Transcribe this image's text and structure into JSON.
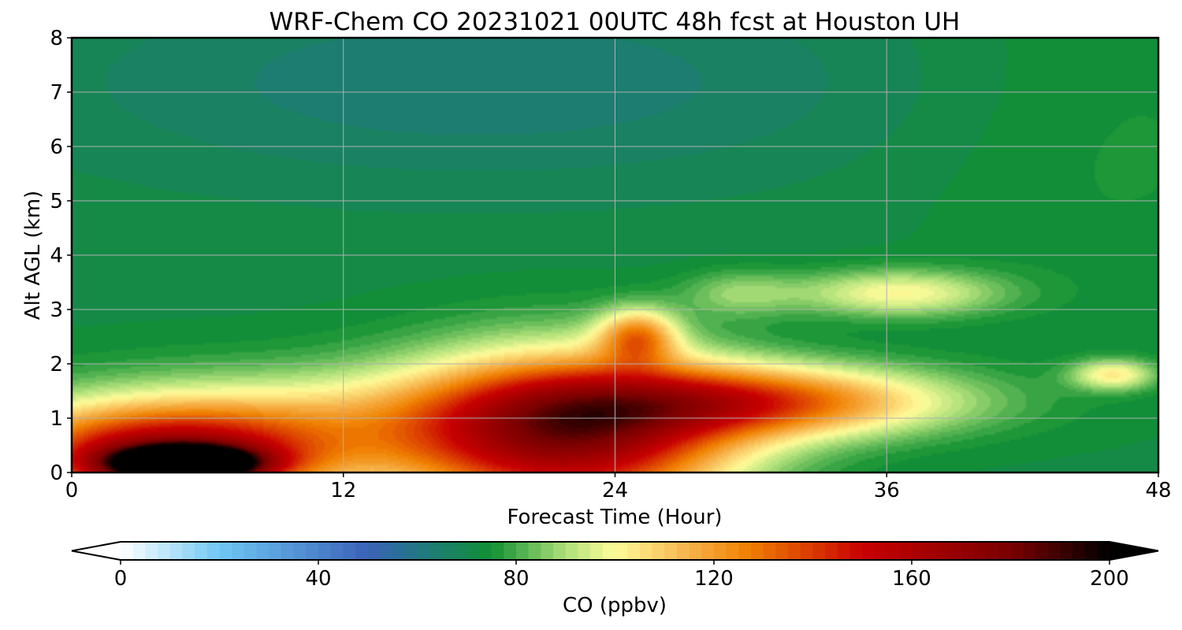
{
  "chart_data": {
    "type": "heatmap",
    "title": "WRF-Chem CO  20231021 00UTC 48h fcst at Houston UH",
    "xlabel": "Forecast Time (Hour)",
    "ylabel": "Alt AGL (km)",
    "x_ticks": [
      0,
      12,
      24,
      36,
      48
    ],
    "y_ticks": [
      0,
      1,
      2,
      3,
      4,
      5,
      6,
      7,
      8
    ],
    "xlim": [
      0,
      48
    ],
    "ylim": [
      0,
      8
    ],
    "grid": true,
    "colorbar": {
      "label": "CO  (ppbv)",
      "ticks": [
        0,
        40,
        80,
        120,
        160,
        200
      ],
      "range": [
        0,
        200
      ],
      "step": 2.5,
      "extend": "both",
      "stops": [
        {
          "v": 0,
          "color": "#ffffff"
        },
        {
          "v": 20,
          "color": "#6fc8f4"
        },
        {
          "v": 50,
          "color": "#3a62b8"
        },
        {
          "v": 62,
          "color": "#1e7a7a"
        },
        {
          "v": 75,
          "color": "#119032"
        },
        {
          "v": 90,
          "color": "#aee07a"
        },
        {
          "v": 100,
          "color": "#fffc9a"
        },
        {
          "v": 115,
          "color": "#f7b24a"
        },
        {
          "v": 127,
          "color": "#f08000"
        },
        {
          "v": 150,
          "color": "#c80000"
        },
        {
          "v": 180,
          "color": "#7a0000"
        },
        {
          "v": 200,
          "color": "#000000"
        }
      ]
    },
    "field": {
      "background_ppbv": 72,
      "features": [
        {
          "desc": "surface black core",
          "x": 5,
          "y": 0.15,
          "sx": 2.2,
          "sy": 0.22,
          "amp": 140
        },
        {
          "desc": "morning surface plume",
          "x": 4,
          "y": 0.3,
          "sx": 5,
          "sy": 0.6,
          "amp": 80
        },
        {
          "desc": "boundary layer yellow",
          "x": 10,
          "y": 0.9,
          "sx": 8,
          "sy": 0.7,
          "amp": 28
        },
        {
          "desc": "dark red plume",
          "x": 22,
          "y": 0.7,
          "sx": 5,
          "sy": 1.0,
          "amp": 95
        },
        {
          "desc": "plume extension",
          "x": 30,
          "y": 1.3,
          "sx": 6,
          "sy": 0.45,
          "amp": 60
        },
        {
          "desc": "upper cell hour 25",
          "x": 25,
          "y": 2.5,
          "sx": 1.2,
          "sy": 0.35,
          "amp": 45
        },
        {
          "desc": "lofted layer hour 36",
          "x": 36.5,
          "y": 3.3,
          "sx": 3.2,
          "sy": 0.3,
          "amp": 28
        },
        {
          "desc": "lofted layer hour 30",
          "x": 29.5,
          "y": 3.3,
          "sx": 1.8,
          "sy": 0.3,
          "amp": 14
        },
        {
          "desc": "late residual hour 46",
          "x": 46,
          "y": 1.8,
          "sx": 1.3,
          "sy": 0.2,
          "amp": 30
        },
        {
          "desc": "mid troposphere dip",
          "x": 18,
          "y": 7.2,
          "sx": 14,
          "sy": 1.4,
          "amp": -9
        },
        {
          "desc": "far field green",
          "x": 46,
          "y": 6.5,
          "sx": 6,
          "sy": 2.5,
          "amp": 4
        }
      ]
    }
  }
}
